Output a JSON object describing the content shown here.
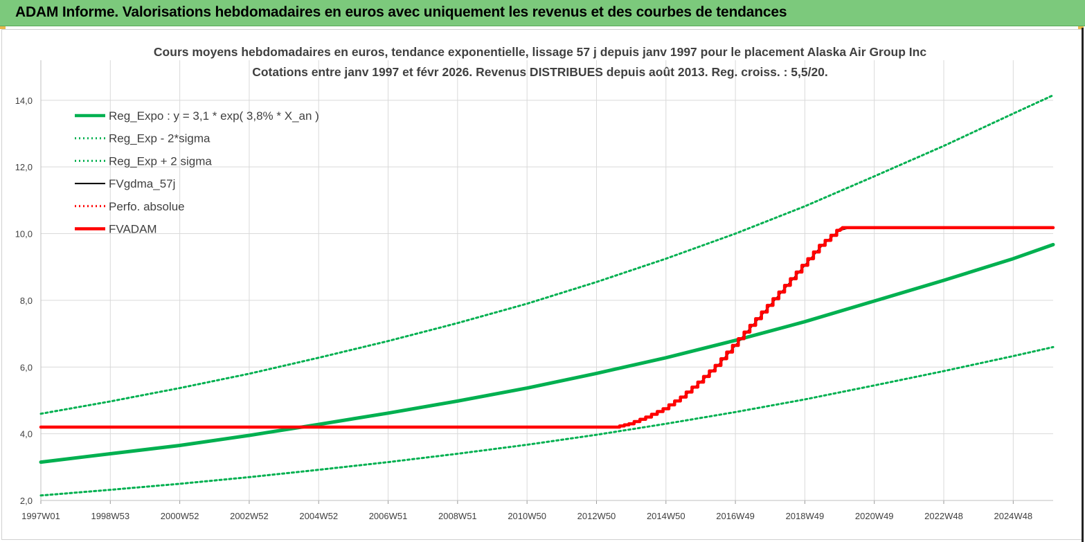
{
  "header": {
    "title": "ADAM Informe. Valorisations hebdomadaires en euros avec uniquement les revenus et des courbes de tendances"
  },
  "colors": {
    "banner": "#7cc97c",
    "green": "#00b050",
    "red": "#ff0000",
    "black": "#000000",
    "grid": "#d9d9d9"
  },
  "chart_data": {
    "type": "line",
    "title": "Cours moyens hebdomadaires en euros, tendance exponentielle, lissage 57 j depuis janv 1997 pour le placement Alaska Air Group Inc",
    "subtitle": "Cotations entre janv 1997 et févr 2026. Revenus DISTRIBUES depuis août 2013. Reg. croiss. : 5,5/20.",
    "xlabel": "",
    "ylabel": "",
    "x_range": [
      1997.0,
      2026.15
    ],
    "ylim": [
      2.0,
      15.2
    ],
    "y_ticks": [
      2.0,
      4.0,
      6.0,
      8.0,
      10.0,
      12.0,
      14.0
    ],
    "y_tick_labels": [
      "2,0",
      "4,0",
      "6,0",
      "8,0",
      "10,0",
      "12,0",
      "14,0"
    ],
    "x_ticks": [
      1997.0,
      1999.0,
      2001.0,
      2003.0,
      2005.0,
      2007.0,
      2009.0,
      2011.0,
      2013.0,
      2015.0,
      2017.0,
      2019.0,
      2021.0,
      2023.0,
      2025.0
    ],
    "x_tick_labels": [
      "1997W01",
      "1998W53",
      "2000W52",
      "2002W52",
      "2004W52",
      "2006W51",
      "2008W51",
      "2010W50",
      "2012W50",
      "2014W50",
      "2016W49",
      "2018W49",
      "2020W49",
      "2022W48",
      "2024W48"
    ],
    "grid": true,
    "legend_position": "top-left",
    "series": [
      {
        "name": "Reg_Expo : y = 3,1 * exp( 3,8% *  X_an )",
        "style": "solid-thick",
        "color": "#00b050",
        "x": [
          1997.0,
          1999.0,
          2001.0,
          2003.0,
          2005.0,
          2007.0,
          2009.0,
          2011.0,
          2013.0,
          2015.0,
          2017.0,
          2019.0,
          2021.0,
          2023.0,
          2025.0,
          2026.15
        ],
        "values": [
          3.15,
          3.4,
          3.65,
          3.95,
          4.28,
          4.62,
          4.98,
          5.37,
          5.81,
          6.28,
          6.8,
          7.36,
          7.98,
          8.6,
          9.25,
          9.67
        ]
      },
      {
        "name": "Reg_Exp - 2*sigma",
        "style": "dotted",
        "color": "#00b050",
        "x": [
          1997.0,
          1999.0,
          2001.0,
          2003.0,
          2005.0,
          2007.0,
          2009.0,
          2011.0,
          2013.0,
          2015.0,
          2017.0,
          2019.0,
          2021.0,
          2023.0,
          2025.0,
          2026.15
        ],
        "values": [
          2.15,
          2.32,
          2.5,
          2.7,
          2.92,
          3.15,
          3.4,
          3.67,
          3.97,
          4.3,
          4.65,
          5.03,
          5.45,
          5.88,
          6.33,
          6.6
        ]
      },
      {
        "name": "Reg_Exp + 2 sigma",
        "style": "dotted",
        "color": "#00b050",
        "x": [
          1997.0,
          1999.0,
          2001.0,
          2003.0,
          2005.0,
          2007.0,
          2009.0,
          2011.0,
          2013.0,
          2015.0,
          2017.0,
          2019.0,
          2021.0,
          2023.0,
          2025.0,
          2026.15
        ],
        "values": [
          4.6,
          4.97,
          5.37,
          5.8,
          6.28,
          6.78,
          7.32,
          7.9,
          8.55,
          9.25,
          10.0,
          10.82,
          11.72,
          12.63,
          13.6,
          14.15
        ]
      },
      {
        "name": "FVgdma_57j",
        "style": "solid",
        "color": "#000000",
        "x": [
          1997.0,
          2013.6,
          2014.0,
          2014.5,
          2015.0,
          2015.5,
          2016.0,
          2016.5,
          2017.0,
          2017.5,
          2018.0,
          2018.5,
          2019.0,
          2019.5,
          2020.0,
          2020.3,
          2026.15
        ],
        "values": [
          4.2,
          4.2,
          4.3,
          4.5,
          4.75,
          5.1,
          5.55,
          6.05,
          6.65,
          7.25,
          7.85,
          8.45,
          9.05,
          9.65,
          10.1,
          10.18,
          10.18
        ]
      },
      {
        "name": "Perfo. absolue",
        "style": "dotted",
        "color": "#ff0000",
        "x": [],
        "values": []
      },
      {
        "name": "FVADAM",
        "style": "solid-thick-stepped",
        "color": "#ff0000",
        "x": [
          1997.0,
          2013.6,
          2014.0,
          2014.5,
          2015.0,
          2015.5,
          2016.0,
          2016.5,
          2017.0,
          2017.5,
          2018.0,
          2018.5,
          2019.0,
          2019.5,
          2020.0,
          2020.1,
          2026.15
        ],
        "values": [
          4.2,
          4.2,
          4.3,
          4.5,
          4.75,
          5.1,
          5.55,
          6.05,
          6.65,
          7.25,
          7.85,
          8.45,
          9.05,
          9.65,
          10.1,
          10.18,
          10.18
        ]
      }
    ]
  }
}
